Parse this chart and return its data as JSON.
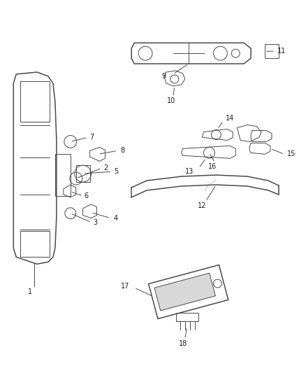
{
  "bg_color": "#ffffff",
  "line_color": "#4a4a4a",
  "label_color": "#1a1a1a",
  "lw_main": 1.1,
  "lw_thin": 0.7,
  "label_fontsize": 7.0
}
